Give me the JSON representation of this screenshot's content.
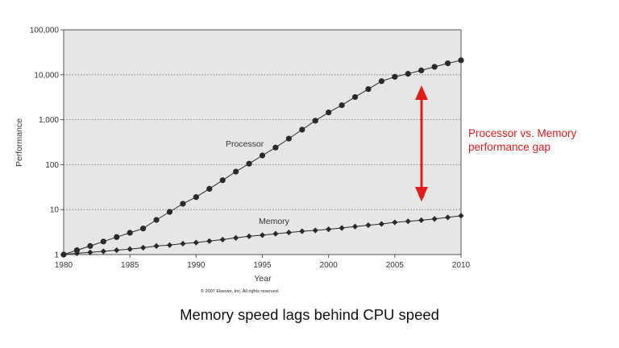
{
  "chart_data": {
    "type": "line",
    "xlabel": "Year",
    "ylabel": "Performance",
    "yscale": "log",
    "xlim": [
      1980,
      2010
    ],
    "ylim": [
      1,
      100000
    ],
    "x_ticks": [
      "1980",
      "1985",
      "1990",
      "1995",
      "2000",
      "2005",
      "2010"
    ],
    "y_ticks": [
      "1",
      "10",
      "100",
      "1,000",
      "10,000",
      "100,000"
    ],
    "grid": "horizontal dotted",
    "x": [
      1980,
      1981,
      1982,
      1983,
      1984,
      1985,
      1986,
      1987,
      1988,
      1989,
      1990,
      1991,
      1992,
      1993,
      1994,
      1995,
      1996,
      1997,
      1998,
      1999,
      2000,
      2001,
      2002,
      2003,
      2004,
      2005,
      2006,
      2007,
      2008,
      2009,
      2010
    ],
    "series": [
      {
        "name": "Processor",
        "values": [
          1,
          1.25,
          1.55,
          1.95,
          2.45,
          3.05,
          3.8,
          5.9,
          8.9,
          13.5,
          19,
          29,
          45,
          70,
          105,
          160,
          240,
          380,
          600,
          950,
          1450,
          2100,
          3200,
          4800,
          7200,
          9000,
          10500,
          12500,
          15000,
          18000,
          21000
        ]
      },
      {
        "name": "Memory",
        "values": [
          1,
          1.07,
          1.12,
          1.18,
          1.25,
          1.32,
          1.42,
          1.55,
          1.62,
          1.75,
          1.85,
          2.0,
          2.15,
          2.35,
          2.55,
          2.7,
          2.9,
          3.1,
          3.3,
          3.45,
          3.65,
          3.9,
          4.2,
          4.5,
          4.8,
          5.2,
          5.5,
          5.8,
          6.2,
          6.7,
          7.3
        ]
      }
    ],
    "annotation": "Processor vs. Memory performance gap",
    "annotation_lines": [
      "Processor vs. Memory",
      "performance gap"
    ],
    "copyright": "© 2007 Elsevier, Inc. All rights reserved.",
    "annotation_color": "#e01b1b",
    "background_color": "#e6e6e6"
  },
  "caption": "Memory speed lags behind CPU speed"
}
